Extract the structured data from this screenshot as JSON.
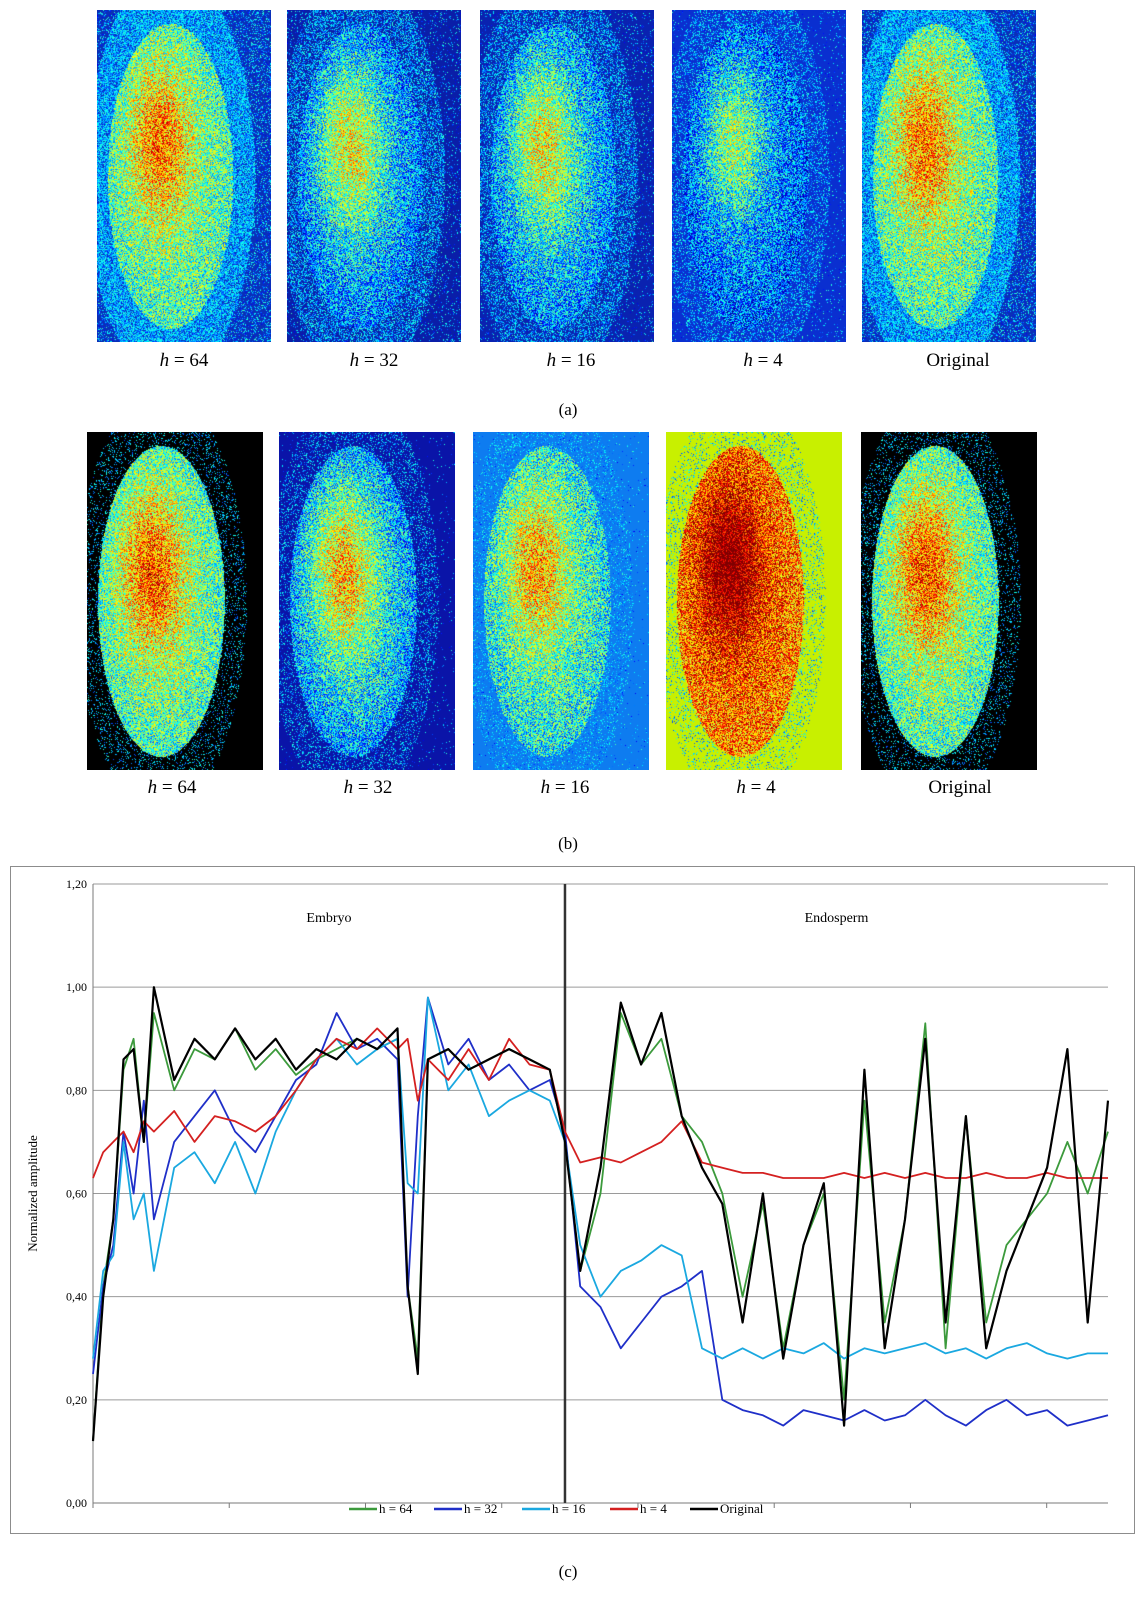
{
  "figure": {
    "row_a": {
      "label": "(a)",
      "panels": [
        {
          "h_label": "h",
          "h_value": "= 64",
          "background": "#0a2fb8"
        },
        {
          "h_label": "h",
          "h_value": "= 32",
          "background": "#0a1ea8"
        },
        {
          "h_label": "h",
          "h_value": "= 16",
          "background": "#0a22b0"
        },
        {
          "h_label": "h",
          "h_value": "= 4",
          "background": "#0a2fd0"
        },
        {
          "h_label": "",
          "h_value": "Original",
          "background": "#0a2fb8"
        }
      ]
    },
    "row_b": {
      "label": "(b)",
      "panels": [
        {
          "h_label": "h",
          "h_value": "= 64",
          "background": "#000000"
        },
        {
          "h_label": "h",
          "h_value": "= 32",
          "background": "#0a14a8"
        },
        {
          "h_label": "h",
          "h_value": "= 16",
          "background": "#0e7cf0"
        },
        {
          "h_label": "h",
          "h_value": "= 4",
          "background": "#c8f000"
        },
        {
          "h_label": "",
          "h_value": "Original",
          "background": "#000000"
        }
      ]
    },
    "row_c": {
      "label": "(c)"
    }
  },
  "chart_data": {
    "type": "line",
    "title": "",
    "xlabel": "",
    "ylabel": "Normalized amplitude",
    "ylim": [
      0,
      1.2
    ],
    "xlim": [
      0,
      1
    ],
    "yticks": [
      "0,00",
      "0,20",
      "0,40",
      "0,60",
      "0,80",
      "1,00",
      "1,20"
    ],
    "grid": "horizontal",
    "legend": "bottom",
    "regions": [
      {
        "name": "Embryo",
        "range": [
          0,
          0.465
        ]
      },
      {
        "name": "Endosperm",
        "range": [
          0.465,
          1
        ]
      }
    ],
    "boundary_x": 0.465,
    "series": [
      {
        "name": "h = 64",
        "color": "#3c9a3c",
        "x": [
          0,
          0.01,
          0.02,
          0.03,
          0.04,
          0.05,
          0.06,
          0.08,
          0.1,
          0.12,
          0.14,
          0.16,
          0.18,
          0.2,
          0.22,
          0.24,
          0.26,
          0.28,
          0.3,
          0.31,
          0.32,
          0.33,
          0.35,
          0.37,
          0.39,
          0.41,
          0.43,
          0.45,
          0.465,
          0.48,
          0.5,
          0.52,
          0.54,
          0.56,
          0.58,
          0.6,
          0.62,
          0.64,
          0.66,
          0.68,
          0.7,
          0.72,
          0.74,
          0.76,
          0.78,
          0.8,
          0.82,
          0.84,
          0.86,
          0.88,
          0.9,
          0.92,
          0.94,
          0.96,
          0.98,
          1.0
        ],
        "y": [
          0.12,
          0.42,
          0.55,
          0.84,
          0.9,
          0.7,
          0.95,
          0.8,
          0.88,
          0.86,
          0.92,
          0.84,
          0.88,
          0.83,
          0.86,
          0.88,
          0.9,
          0.88,
          0.9,
          0.42,
          0.28,
          0.86,
          0.88,
          0.84,
          0.86,
          0.88,
          0.86,
          0.84,
          0.7,
          0.45,
          0.6,
          0.95,
          0.85,
          0.9,
          0.75,
          0.7,
          0.6,
          0.4,
          0.58,
          0.3,
          0.5,
          0.6,
          0.2,
          0.78,
          0.35,
          0.55,
          0.93,
          0.3,
          0.75,
          0.35,
          0.5,
          0.55,
          0.6,
          0.7,
          0.6,
          0.72
        ]
      },
      {
        "name": "h = 32",
        "color": "#1f2fc8",
        "x": [
          0,
          0.01,
          0.02,
          0.03,
          0.04,
          0.05,
          0.06,
          0.08,
          0.1,
          0.12,
          0.14,
          0.16,
          0.18,
          0.2,
          0.22,
          0.24,
          0.26,
          0.28,
          0.3,
          0.31,
          0.32,
          0.33,
          0.35,
          0.37,
          0.39,
          0.41,
          0.43,
          0.45,
          0.465,
          0.48,
          0.5,
          0.52,
          0.54,
          0.56,
          0.58,
          0.6,
          0.62,
          0.64,
          0.66,
          0.68,
          0.7,
          0.72,
          0.74,
          0.76,
          0.78,
          0.8,
          0.82,
          0.84,
          0.86,
          0.88,
          0.9,
          0.92,
          0.94,
          0.96,
          0.98,
          1.0
        ],
        "y": [
          0.25,
          0.42,
          0.5,
          0.72,
          0.6,
          0.78,
          0.55,
          0.7,
          0.75,
          0.8,
          0.72,
          0.68,
          0.75,
          0.82,
          0.85,
          0.95,
          0.88,
          0.9,
          0.86,
          0.4,
          0.75,
          0.98,
          0.85,
          0.9,
          0.82,
          0.85,
          0.8,
          0.82,
          0.72,
          0.42,
          0.38,
          0.3,
          0.35,
          0.4,
          0.42,
          0.45,
          0.2,
          0.18,
          0.17,
          0.15,
          0.18,
          0.17,
          0.16,
          0.18,
          0.16,
          0.17,
          0.2,
          0.17,
          0.15,
          0.18,
          0.2,
          0.17,
          0.18,
          0.15,
          0.16,
          0.17
        ]
      },
      {
        "name": "h = 16",
        "color": "#1aa8e0",
        "x": [
          0,
          0.01,
          0.02,
          0.03,
          0.04,
          0.05,
          0.06,
          0.08,
          0.1,
          0.12,
          0.14,
          0.16,
          0.18,
          0.2,
          0.22,
          0.24,
          0.26,
          0.28,
          0.3,
          0.31,
          0.32,
          0.33,
          0.35,
          0.37,
          0.39,
          0.41,
          0.43,
          0.45,
          0.465,
          0.48,
          0.5,
          0.52,
          0.54,
          0.56,
          0.58,
          0.6,
          0.62,
          0.64,
          0.66,
          0.68,
          0.7,
          0.72,
          0.74,
          0.76,
          0.78,
          0.8,
          0.82,
          0.84,
          0.86,
          0.88,
          0.9,
          0.92,
          0.94,
          0.96,
          0.98,
          1.0
        ],
        "y": [
          0.28,
          0.45,
          0.48,
          0.7,
          0.55,
          0.6,
          0.45,
          0.65,
          0.68,
          0.62,
          0.7,
          0.6,
          0.72,
          0.8,
          0.86,
          0.9,
          0.85,
          0.88,
          0.9,
          0.62,
          0.6,
          0.98,
          0.8,
          0.85,
          0.75,
          0.78,
          0.8,
          0.78,
          0.7,
          0.5,
          0.4,
          0.45,
          0.47,
          0.5,
          0.48,
          0.3,
          0.28,
          0.3,
          0.28,
          0.3,
          0.29,
          0.31,
          0.28,
          0.3,
          0.29,
          0.3,
          0.31,
          0.29,
          0.3,
          0.28,
          0.3,
          0.31,
          0.29,
          0.28,
          0.29,
          0.29
        ]
      },
      {
        "name": "h = 4",
        "color": "#d42020",
        "x": [
          0,
          0.01,
          0.02,
          0.03,
          0.04,
          0.05,
          0.06,
          0.08,
          0.1,
          0.12,
          0.14,
          0.16,
          0.18,
          0.2,
          0.22,
          0.24,
          0.26,
          0.28,
          0.3,
          0.31,
          0.32,
          0.33,
          0.35,
          0.37,
          0.39,
          0.41,
          0.43,
          0.45,
          0.465,
          0.48,
          0.5,
          0.52,
          0.54,
          0.56,
          0.58,
          0.6,
          0.62,
          0.64,
          0.66,
          0.68,
          0.7,
          0.72,
          0.74,
          0.76,
          0.78,
          0.8,
          0.82,
          0.84,
          0.86,
          0.88,
          0.9,
          0.92,
          0.94,
          0.96,
          0.98,
          1.0
        ],
        "y": [
          0.63,
          0.68,
          0.7,
          0.72,
          0.68,
          0.74,
          0.72,
          0.76,
          0.7,
          0.75,
          0.74,
          0.72,
          0.75,
          0.8,
          0.86,
          0.9,
          0.88,
          0.92,
          0.88,
          0.9,
          0.78,
          0.86,
          0.82,
          0.88,
          0.82,
          0.9,
          0.85,
          0.84,
          0.72,
          0.66,
          0.67,
          0.66,
          0.68,
          0.7,
          0.74,
          0.66,
          0.65,
          0.64,
          0.64,
          0.63,
          0.63,
          0.63,
          0.64,
          0.63,
          0.64,
          0.63,
          0.64,
          0.63,
          0.63,
          0.64,
          0.63,
          0.63,
          0.64,
          0.63,
          0.63,
          0.63
        ]
      },
      {
        "name": "Original",
        "color": "#000000",
        "x": [
          0,
          0.01,
          0.02,
          0.03,
          0.04,
          0.05,
          0.06,
          0.08,
          0.1,
          0.12,
          0.14,
          0.16,
          0.18,
          0.2,
          0.22,
          0.24,
          0.26,
          0.28,
          0.3,
          0.31,
          0.32,
          0.33,
          0.35,
          0.37,
          0.39,
          0.41,
          0.43,
          0.45,
          0.465,
          0.48,
          0.5,
          0.52,
          0.54,
          0.56,
          0.58,
          0.6,
          0.62,
          0.64,
          0.66,
          0.68,
          0.7,
          0.72,
          0.74,
          0.76,
          0.78,
          0.8,
          0.82,
          0.84,
          0.86,
          0.88,
          0.9,
          0.92,
          0.94,
          0.96,
          0.98,
          1.0
        ],
        "y": [
          0.12,
          0.4,
          0.55,
          0.86,
          0.88,
          0.7,
          1.0,
          0.82,
          0.9,
          0.86,
          0.92,
          0.86,
          0.9,
          0.84,
          0.88,
          0.86,
          0.9,
          0.88,
          0.92,
          0.42,
          0.25,
          0.86,
          0.88,
          0.84,
          0.86,
          0.88,
          0.86,
          0.84,
          0.7,
          0.45,
          0.65,
          0.97,
          0.85,
          0.95,
          0.75,
          0.65,
          0.58,
          0.35,
          0.6,
          0.28,
          0.5,
          0.62,
          0.15,
          0.84,
          0.3,
          0.55,
          0.9,
          0.35,
          0.75,
          0.3,
          0.45,
          0.55,
          0.65,
          0.88,
          0.35,
          0.78
        ]
      }
    ]
  }
}
